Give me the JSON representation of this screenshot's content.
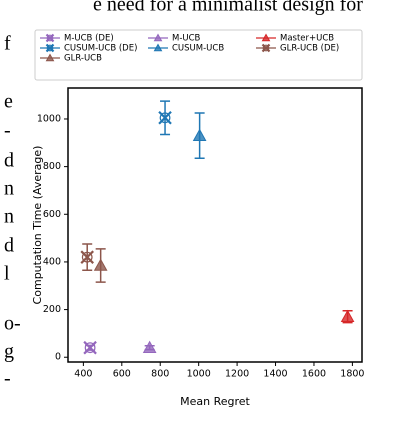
{
  "context_text": {
    "top": "e need for a minimalist design for",
    "left": [
      "f",
      "e",
      "-",
      "d",
      "n",
      "n",
      "d",
      "l",
      "o-",
      "g",
      "-"
    ]
  },
  "chart_data": {
    "type": "scatter",
    "xlabel": "Mean Regret",
    "ylabel": "Computation Time (Average)",
    "xlim": [
      320,
      1850
    ],
    "ylim": [
      -20,
      1130
    ],
    "xticks": [
      400,
      600,
      800,
      1000,
      1200,
      1400,
      1600,
      1800
    ],
    "yticks": [
      0,
      200,
      400,
      600,
      800,
      1000
    ],
    "series": [
      {
        "name": "M-UCB (DE)",
        "color": "#9467bd",
        "marker": "X",
        "x": [
          435
        ],
        "values": [
          40
        ],
        "errors": [
          10
        ]
      },
      {
        "name": "M-UCB",
        "color": "#9467bd",
        "marker": "^",
        "x": [
          745
        ],
        "values": [
          40
        ],
        "errors": [
          8
        ]
      },
      {
        "name": "Master+UCB",
        "color": "#d62728",
        "marker": "^",
        "x": [
          1775
        ],
        "values": [
          170
        ],
        "errors": [
          25
        ]
      },
      {
        "name": "CUSUM-UCB (DE)",
        "color": "#1f77b4",
        "marker": "X",
        "x": [
          825
        ],
        "values": [
          1005
        ],
        "errors": [
          70
        ]
      },
      {
        "name": "CUSUM-UCB",
        "color": "#1f77b4",
        "marker": "^",
        "x": [
          1005
        ],
        "values": [
          930
        ],
        "errors": [
          95
        ]
      },
      {
        "name": "GLR-UCB (DE)",
        "color": "#8c564b",
        "marker": "X",
        "x": [
          420
        ],
        "values": [
          420
        ],
        "errors": [
          55
        ]
      },
      {
        "name": "GLR-UCB",
        "color": "#8c564b",
        "marker": "^",
        "x": [
          490
        ],
        "values": [
          385
        ],
        "errors": [
          70
        ]
      }
    ]
  }
}
